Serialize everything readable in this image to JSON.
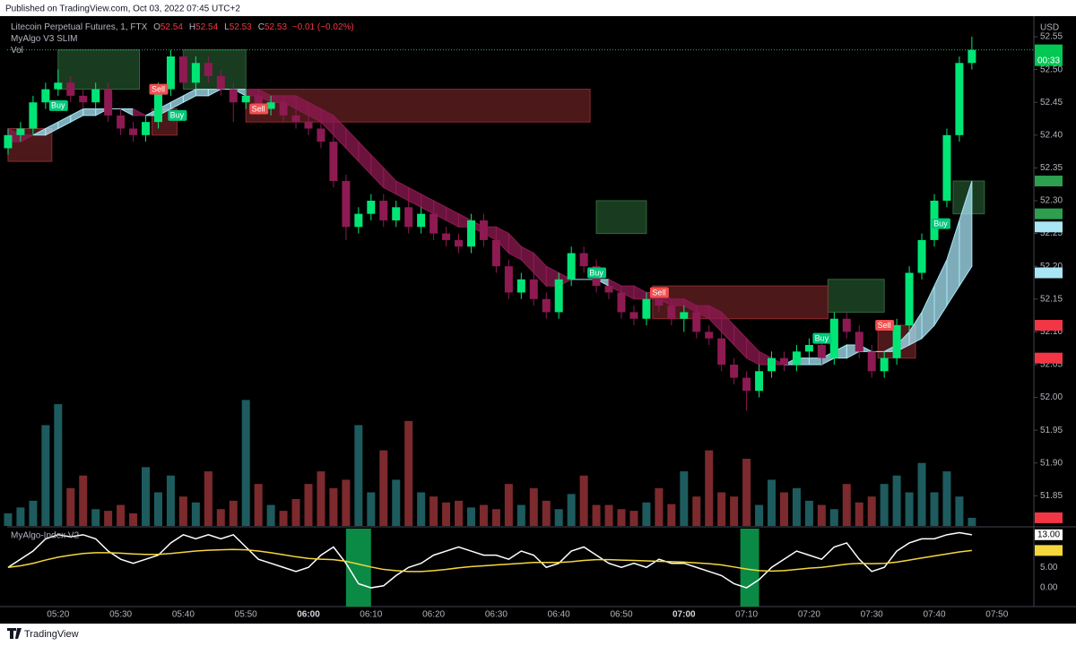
{
  "chart_data": {
    "type": "candlestick",
    "published": "Published on TradingView.com, Oct 03, 2022 07:45 UTC+2",
    "symbol": "Litecoin Perpetual Futures, 1, FTX",
    "ohlc_legend": [
      {
        "key": "O",
        "value": 52.54
      },
      {
        "key": "H",
        "value": 52.54
      },
      {
        "key": "L",
        "value": 52.53
      },
      {
        "key": "C",
        "value": 52.53
      }
    ],
    "change": "−0.01 (−0.02%)",
    "indicator": "MyAlgo V3 SLIM",
    "volume_title": "Vol",
    "index_title": "MyAlgo-Index V2",
    "currency": "USD",
    "footer": "TradingView",
    "countdown": "00:33",
    "up_color": "#00e676",
    "down_color": "#8e1a52",
    "vol_up_color": "#1d5b5e",
    "vol_down_color": "#7c2a2d",
    "ribbon_up_color": "#a8e6f5",
    "ribbon_down_color": "#8e1a52",
    "x": [
      "05:12",
      "05:14",
      "05:16",
      "05:18",
      "05:20",
      "05:22",
      "05:24",
      "05:26",
      "05:28",
      "05:30",
      "05:32",
      "05:34",
      "05:36",
      "05:38",
      "05:40",
      "05:42",
      "05:44",
      "05:46",
      "05:48",
      "05:50",
      "05:52",
      "05:54",
      "05:56",
      "05:58",
      "06:00",
      "06:02",
      "06:04",
      "06:06",
      "06:08",
      "06:10",
      "06:12",
      "06:14",
      "06:16",
      "06:18",
      "06:20",
      "06:22",
      "06:24",
      "06:26",
      "06:28",
      "06:30",
      "06:32",
      "06:34",
      "06:36",
      "06:38",
      "06:40",
      "06:42",
      "06:44",
      "06:46",
      "06:48",
      "06:50",
      "06:52",
      "06:54",
      "06:56",
      "06:58",
      "07:00",
      "07:02",
      "07:04",
      "07:06",
      "07:08",
      "07:10",
      "07:12",
      "07:14",
      "07:16",
      "07:18",
      "07:20",
      "07:22",
      "07:24",
      "07:26",
      "07:28",
      "07:30",
      "07:32",
      "07:34",
      "07:36",
      "07:38",
      "07:40",
      "07:42",
      "07:44",
      "07:46"
    ],
    "open": [
      52.38,
      52.4,
      52.41,
      52.45,
      52.47,
      52.48,
      52.46,
      52.45,
      52.47,
      52.43,
      52.41,
      52.4,
      52.42,
      52.47,
      52.52,
      52.48,
      52.51,
      52.49,
      52.47,
      52.45,
      52.46,
      52.44,
      52.45,
      52.43,
      52.42,
      52.41,
      52.39,
      52.33,
      52.26,
      52.28,
      52.3,
      52.27,
      52.29,
      52.26,
      52.28,
      52.25,
      52.24,
      52.23,
      52.27,
      52.24,
      52.2,
      52.16,
      52.18,
      52.15,
      52.13,
      52.18,
      52.22,
      52.2,
      52.17,
      52.16,
      52.13,
      52.12,
      52.15,
      52.14,
      52.12,
      52.13,
      52.1,
      52.09,
      52.05,
      52.03,
      52.01,
      52.04,
      52.06,
      52.05,
      52.07,
      52.08,
      52.06,
      52.12,
      52.1,
      52.07,
      52.04,
      52.06,
      52.11,
      52.19,
      52.24,
      52.3,
      52.4,
      52.51
    ],
    "high": [
      52.41,
      52.42,
      52.46,
      52.48,
      52.5,
      52.49,
      52.47,
      52.48,
      52.48,
      52.44,
      52.42,
      52.43,
      52.48,
      52.53,
      52.53,
      52.52,
      52.52,
      52.5,
      52.48,
      52.47,
      52.47,
      52.46,
      52.46,
      52.44,
      52.43,
      52.42,
      52.4,
      52.34,
      52.29,
      52.31,
      52.31,
      52.3,
      52.3,
      52.29,
      52.29,
      52.26,
      52.25,
      52.28,
      52.28,
      52.25,
      52.21,
      52.19,
      52.19,
      52.16,
      52.19,
      52.23,
      52.23,
      52.21,
      52.18,
      52.17,
      52.14,
      52.16,
      52.16,
      52.15,
      52.14,
      52.14,
      52.11,
      52.1,
      52.06,
      52.04,
      52.05,
      52.07,
      52.07,
      52.08,
      52.09,
      52.09,
      52.13,
      52.13,
      52.11,
      52.08,
      52.07,
      52.12,
      52.2,
      52.25,
      52.31,
      52.41,
      52.52,
      52.55
    ],
    "low": [
      52.37,
      52.39,
      52.4,
      52.44,
      52.46,
      52.45,
      52.44,
      52.44,
      52.42,
      52.4,
      52.39,
      52.39,
      52.41,
      52.46,
      52.47,
      52.47,
      52.48,
      52.46,
      52.42,
      52.44,
      52.43,
      52.43,
      52.42,
      52.41,
      52.4,
      52.38,
      52.32,
      52.24,
      52.25,
      52.27,
      52.26,
      52.26,
      52.25,
      52.25,
      52.24,
      52.23,
      52.22,
      52.22,
      52.23,
      52.19,
      52.15,
      52.15,
      52.14,
      52.12,
      52.12,
      52.17,
      52.19,
      52.16,
      52.15,
      52.12,
      52.11,
      52.11,
      52.13,
      52.11,
      52.1,
      52.09,
      52.08,
      52.04,
      52.02,
      51.98,
      52.0,
      52.03,
      52.04,
      52.04,
      52.06,
      52.05,
      52.05,
      52.09,
      52.06,
      52.03,
      52.03,
      52.05,
      52.1,
      52.18,
      52.23,
      52.29,
      52.39,
      52.5
    ],
    "close": [
      52.4,
      52.41,
      52.45,
      52.47,
      52.48,
      52.46,
      52.45,
      52.47,
      52.43,
      52.41,
      52.4,
      52.42,
      52.47,
      52.52,
      52.48,
      52.51,
      52.49,
      52.47,
      52.45,
      52.46,
      52.44,
      52.45,
      52.43,
      52.42,
      52.41,
      52.39,
      52.33,
      52.26,
      52.28,
      52.3,
      52.27,
      52.29,
      52.26,
      52.28,
      52.25,
      52.24,
      52.23,
      52.27,
      52.24,
      52.2,
      52.16,
      52.18,
      52.15,
      52.13,
      52.18,
      52.22,
      52.2,
      52.17,
      52.16,
      52.13,
      52.12,
      52.15,
      52.14,
      52.12,
      52.13,
      52.1,
      52.09,
      52.05,
      52.03,
      52.01,
      52.04,
      52.06,
      52.05,
      52.07,
      52.08,
      52.06,
      52.12,
      52.1,
      52.07,
      52.04,
      52.06,
      52.11,
      52.19,
      52.24,
      52.3,
      52.4,
      52.51,
      52.53
    ],
    "volume": [
      1500,
      2200,
      3000,
      12000,
      14500,
      4500,
      6000,
      2000,
      1800,
      2500,
      1500,
      7000,
      4000,
      6000,
      3500,
      2800,
      6500,
      2000,
      3000,
      15000,
      5000,
      2500,
      1800,
      3200,
      5000,
      6500,
      4500,
      5500,
      12000,
      4000,
      9000,
      5500,
      12500,
      4000,
      3500,
      2800,
      3000,
      2200,
      2500,
      2000,
      5000,
      2500,
      4500,
      3000,
      2000,
      3800,
      6000,
      2500,
      2500,
      2000,
      1800,
      2800,
      4500,
      2600,
      6500,
      3500,
      9000,
      4000,
      3500,
      8000,
      2500,
      5500,
      4000,
      4500,
      3000,
      2500,
      2000,
      5000,
      2800,
      3500,
      5000,
      6000,
      4000,
      7500,
      4000,
      6500,
      3500,
      970
    ],
    "ma_fast": [
      52.39,
      52.39,
      52.4,
      52.41,
      52.42,
      52.43,
      52.44,
      52.44,
      52.44,
      52.44,
      52.43,
      52.43,
      52.44,
      52.45,
      52.46,
      52.47,
      52.47,
      52.47,
      52.47,
      52.46,
      52.46,
      52.45,
      52.45,
      52.44,
      52.43,
      52.42,
      52.4,
      52.38,
      52.36,
      52.34,
      52.32,
      52.31,
      52.3,
      52.29,
      52.28,
      52.27,
      52.26,
      52.26,
      52.25,
      52.24,
      52.22,
      52.21,
      52.19,
      52.17,
      52.17,
      52.18,
      52.18,
      52.18,
      52.17,
      52.16,
      52.15,
      52.15,
      52.15,
      52.14,
      52.14,
      52.13,
      52.12,
      52.1,
      52.08,
      52.06,
      52.05,
      52.05,
      52.05,
      52.06,
      52.06,
      52.06,
      52.07,
      52.08,
      52.08,
      52.07,
      52.07,
      52.08,
      52.1,
      52.13,
      52.17,
      52.21,
      52.27,
      52.33
    ],
    "ma_slow": [
      52.41,
      52.4,
      52.4,
      52.4,
      52.41,
      52.42,
      52.43,
      52.43,
      52.44,
      52.44,
      52.44,
      52.43,
      52.43,
      52.44,
      52.45,
      52.46,
      52.46,
      52.47,
      52.47,
      52.47,
      52.47,
      52.46,
      52.46,
      52.46,
      52.45,
      52.44,
      52.43,
      52.41,
      52.39,
      52.37,
      52.35,
      52.33,
      52.32,
      52.31,
      52.3,
      52.29,
      52.28,
      52.27,
      52.26,
      52.26,
      52.25,
      52.23,
      52.22,
      52.2,
      52.19,
      52.18,
      52.18,
      52.18,
      52.18,
      52.17,
      52.17,
      52.16,
      52.16,
      52.15,
      52.15,
      52.14,
      52.14,
      52.13,
      52.11,
      52.09,
      52.07,
      52.06,
      52.05,
      52.05,
      52.05,
      52.05,
      52.06,
      52.06,
      52.07,
      52.07,
      52.07,
      52.07,
      52.08,
      52.09,
      52.11,
      52.14,
      52.17,
      52.2
    ],
    "index": [
      5,
      7,
      9,
      12,
      13,
      12.5,
      13,
      12,
      9,
      7,
      6,
      7,
      8,
      11,
      13,
      12,
      13,
      12,
      13,
      10,
      7,
      6,
      5,
      4,
      5,
      8,
      10,
      6,
      1,
      0,
      0.5,
      3,
      5,
      6,
      8,
      9,
      10,
      9,
      8,
      8,
      7,
      9,
      8,
      5,
      6,
      9,
      10,
      8,
      6,
      5,
      6,
      5,
      7,
      6,
      6,
      5,
      4,
      3,
      1,
      0,
      2,
      5,
      7,
      9,
      8,
      7,
      10,
      11,
      7,
      4,
      5,
      9,
      11,
      12,
      12,
      13,
      13.5,
      13
    ],
    "signal": [
      5,
      5.4,
      6,
      6.8,
      7.5,
      8,
      8.4,
      8.6,
      8.6,
      8.5,
      8.3,
      8.2,
      8.2,
      8.4,
      8.7,
      9,
      9.2,
      9.3,
      9.4,
      9.3,
      9,
      8.6,
      8.1,
      7.6,
      7.2,
      7,
      6.9,
      6.5,
      5.8,
      5.1,
      4.5,
      4.2,
      4,
      4,
      4.2,
      4.5,
      4.9,
      5.2,
      5.4,
      5.6,
      5.8,
      6,
      6.2,
      6.2,
      6.2,
      6.4,
      6.7,
      6.9,
      6.9,
      6.8,
      6.7,
      6.6,
      6.5,
      6.4,
      6.3,
      6.1,
      5.9,
      5.6,
      5.1,
      4.6,
      4.2,
      4.1,
      4.2,
      4.5,
      4.8,
      5,
      5.4,
      5.8,
      6,
      5.9,
      6,
      6.3,
      6.8,
      7.3,
      7.8,
      8.3,
      8.8,
      9.15
    ],
    "index_color": "#ffffff",
    "signal_color": "#f5d63d",
    "highlight_color": "#0b8a45",
    "index_highlights": [
      [
        "06:06",
        "06:10"
      ],
      [
        "07:09",
        "07:12"
      ]
    ],
    "zones": [
      {
        "kind": "demand",
        "from": "05:20",
        "to": "05:33",
        "low": 52.47,
        "high": 52.53
      },
      {
        "kind": "demand",
        "from": "05:40",
        "to": "05:50",
        "low": 52.47,
        "high": 52.53
      },
      {
        "kind": "demand",
        "from": "06:46",
        "to": "06:54",
        "low": 52.25,
        "high": 52.3
      },
      {
        "kind": "demand",
        "from": "07:23",
        "to": "07:32",
        "low": 52.13,
        "high": 52.18
      },
      {
        "kind": "demand",
        "from": "07:43",
        "to": "07:48",
        "low": 52.28,
        "high": 52.33
      },
      {
        "kind": "supply",
        "from": "05:12",
        "to": "05:19",
        "low": 52.36,
        "high": 52.41
      },
      {
        "kind": "supply",
        "from": "05:35",
        "to": "05:39",
        "low": 52.4,
        "high": 52.44
      },
      {
        "kind": "supply",
        "from": "05:50",
        "to": "06:45",
        "low": 52.42,
        "high": 52.47
      },
      {
        "kind": "supply",
        "from": "06:55",
        "to": "07:23",
        "low": 52.12,
        "high": 52.17
      },
      {
        "kind": "supply",
        "from": "07:31",
        "to": "07:37",
        "low": 52.06,
        "high": 52.11
      }
    ],
    "zone_colors": {
      "demand": "#2e6b3a",
      "supply": "#8a2b2f"
    },
    "signals": [
      {
        "label": "Buy",
        "time": "05:20",
        "price": 52.445
      },
      {
        "label": "Sell",
        "time": "05:36",
        "price": 52.47
      },
      {
        "label": "Buy",
        "time": "05:39",
        "price": 52.43
      },
      {
        "label": "Sell",
        "time": "05:52",
        "price": 52.44
      },
      {
        "label": "Buy",
        "time": "06:46",
        "price": 52.19
      },
      {
        "label": "Sell",
        "time": "06:56",
        "price": 52.16
      },
      {
        "label": "Buy",
        "time": "07:22",
        "price": 52.09
      },
      {
        "label": "Sell",
        "time": "07:32",
        "price": 52.11
      },
      {
        "label": "Buy",
        "time": "07:41",
        "price": 52.265
      }
    ],
    "signal_colors": {
      "Buy": "#00c97b",
      "Sell": "#f0504f"
    },
    "ylim": [
      51.804,
      52.576
    ],
    "yticks": [
      51.85,
      {
        "value": 51.9,
        "label": "51.90"
      },
      51.95,
      {
        "value": 52,
        "label": "52.00"
      },
      52.05,
      {
        "value": 52.1,
        "label": "52.10"
      },
      52.15,
      {
        "value": 52.2,
        "label": "52.20"
      },
      52.25,
      {
        "value": 52.3,
        "label": "52.30"
      },
      52.35,
      {
        "value": 52.4,
        "label": "52.40"
      },
      52.45,
      {
        "value": 52.5,
        "label": "52.50"
      },
      52.55
    ],
    "price_badges": [
      {
        "value": 52.53,
        "color": "#00c853"
      },
      {
        "value": 52.33,
        "color": "#2e9e4f"
      },
      {
        "value": 52.28,
        "color": "#2e9e4f"
      },
      {
        "value": 52.26,
        "color": "#a8e6f5"
      },
      {
        "value": 52.19,
        "color": "#a8e6f5"
      },
      {
        "value": 52.11,
        "color": "#f23645"
      },
      {
        "value": 52.06,
        "color": "#f23645"
      }
    ],
    "volume_badge": {
      "value": 970,
      "color": "#f23645"
    },
    "vlim": [
      0,
      16000
    ],
    "index_lim": [
      -4.6,
      14.5
    ],
    "index_ticks": [
      {
        "value": 0,
        "label": "0.00"
      },
      {
        "value": 5,
        "label": "5.00"
      }
    ],
    "index_badges": [
      {
        "value": 13,
        "label": "13.00",
        "color": "#ffffff"
      },
      {
        "value": 9.15,
        "color": "#f5d63d"
      }
    ],
    "xticks": [
      "05:20",
      "05:30",
      "05:40",
      "05:50",
      "06:00",
      "06:10",
      "06:20",
      "06:30",
      "06:40",
      "06:50",
      "07:00",
      "07:10",
      "07:20",
      "07:30",
      "07:40",
      "07:50"
    ]
  }
}
